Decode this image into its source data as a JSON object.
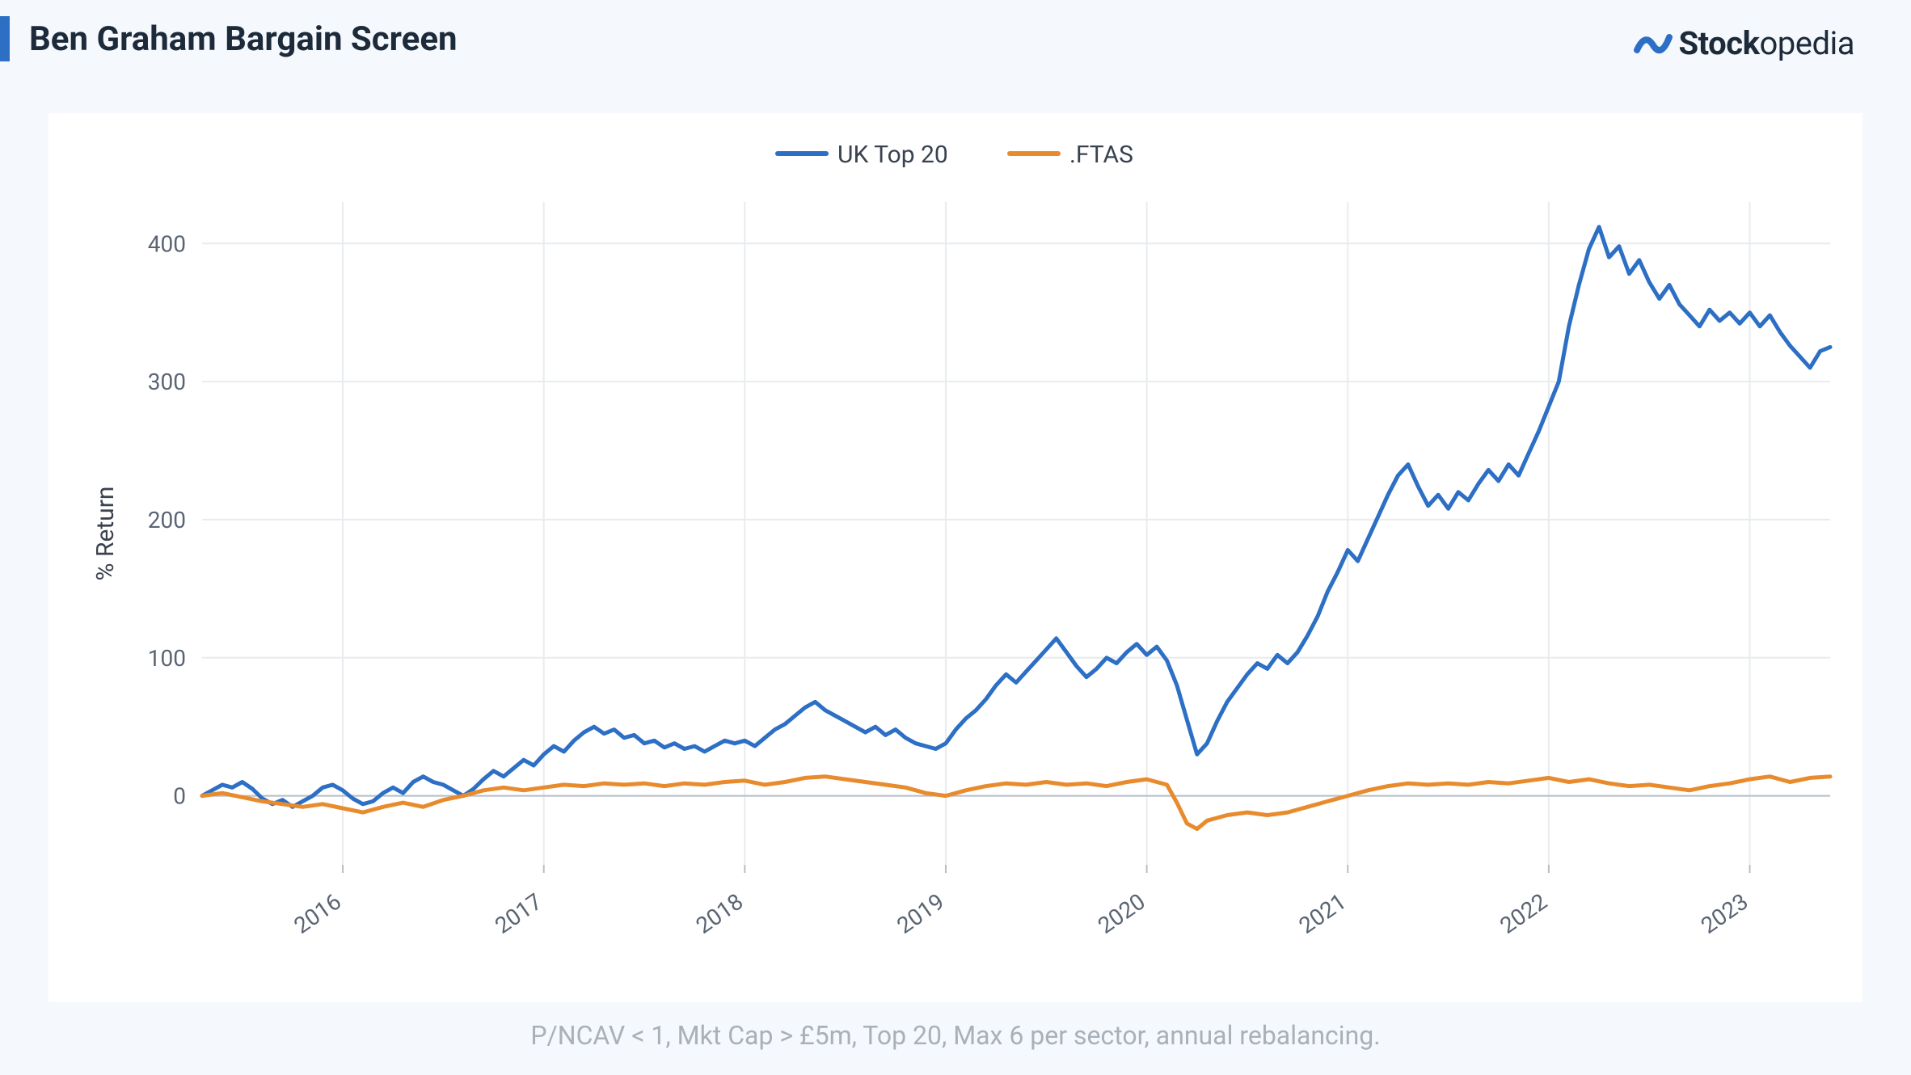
{
  "title": "Ben Graham Bargain Screen",
  "brand": {
    "bold": "Stock",
    "rest": "opedia"
  },
  "caption": "P/NCAV < 1, Mkt Cap > £5m, Top 20, Max 6 per sector, annual rebalancing.",
  "chart": {
    "type": "line",
    "background_color": "#ffffff",
    "page_background_color": "#f5f8fc",
    "grid_color": "#e8ecef",
    "axis_color": "#b8bec6",
    "tick_label_color": "#5a6472",
    "tick_label_fontsize": 28,
    "title_fontsize": 42,
    "title_color": "#1c2a3a",
    "caption_fontsize": 32,
    "caption_color": "#a9b0b8",
    "ylabel": "% Return",
    "ylabel_fontsize": 30,
    "ylim": [
      -50,
      430
    ],
    "yticks": [
      0,
      100,
      200,
      300,
      400
    ],
    "xlim": [
      2015.3,
      2023.4
    ],
    "xticks": [
      2016,
      2017,
      2018,
      2019,
      2020,
      2021,
      2022,
      2023
    ],
    "xtick_labels": [
      "2016",
      "2017",
      "2018",
      "2019",
      "2020",
      "2021",
      "2022",
      "2023"
    ],
    "legend": [
      {
        "label": "UK Top 20",
        "color": "#2d6fc4"
      },
      {
        "label": ".FTAS",
        "color": "#e88b2d"
      }
    ],
    "legend_fontsize": 30,
    "line_width": 5,
    "series": [
      {
        "name": "UK Top 20",
        "color": "#2d6fc4",
        "points": [
          [
            2015.3,
            0
          ],
          [
            2015.35,
            4
          ],
          [
            2015.4,
            8
          ],
          [
            2015.45,
            6
          ],
          [
            2015.5,
            10
          ],
          [
            2015.55,
            5
          ],
          [
            2015.6,
            -2
          ],
          [
            2015.65,
            -6
          ],
          [
            2015.7,
            -3
          ],
          [
            2015.75,
            -8
          ],
          [
            2015.8,
            -4
          ],
          [
            2015.85,
            0
          ],
          [
            2015.9,
            6
          ],
          [
            2015.95,
            8
          ],
          [
            2016.0,
            4
          ],
          [
            2016.05,
            -2
          ],
          [
            2016.1,
            -6
          ],
          [
            2016.15,
            -4
          ],
          [
            2016.2,
            2
          ],
          [
            2016.25,
            6
          ],
          [
            2016.3,
            2
          ],
          [
            2016.35,
            10
          ],
          [
            2016.4,
            14
          ],
          [
            2016.45,
            10
          ],
          [
            2016.5,
            8
          ],
          [
            2016.55,
            4
          ],
          [
            2016.6,
            0
          ],
          [
            2016.65,
            5
          ],
          [
            2016.7,
            12
          ],
          [
            2016.75,
            18
          ],
          [
            2016.8,
            14
          ],
          [
            2016.85,
            20
          ],
          [
            2016.9,
            26
          ],
          [
            2016.95,
            22
          ],
          [
            2017.0,
            30
          ],
          [
            2017.05,
            36
          ],
          [
            2017.1,
            32
          ],
          [
            2017.15,
            40
          ],
          [
            2017.2,
            46
          ],
          [
            2017.25,
            50
          ],
          [
            2017.3,
            45
          ],
          [
            2017.35,
            48
          ],
          [
            2017.4,
            42
          ],
          [
            2017.45,
            44
          ],
          [
            2017.5,
            38
          ],
          [
            2017.55,
            40
          ],
          [
            2017.6,
            35
          ],
          [
            2017.65,
            38
          ],
          [
            2017.7,
            34
          ],
          [
            2017.75,
            36
          ],
          [
            2017.8,
            32
          ],
          [
            2017.85,
            36
          ],
          [
            2017.9,
            40
          ],
          [
            2017.95,
            38
          ],
          [
            2018.0,
            40
          ],
          [
            2018.05,
            36
          ],
          [
            2018.1,
            42
          ],
          [
            2018.15,
            48
          ],
          [
            2018.2,
            52
          ],
          [
            2018.25,
            58
          ],
          [
            2018.3,
            64
          ],
          [
            2018.35,
            68
          ],
          [
            2018.4,
            62
          ],
          [
            2018.45,
            58
          ],
          [
            2018.5,
            54
          ],
          [
            2018.55,
            50
          ],
          [
            2018.6,
            46
          ],
          [
            2018.65,
            50
          ],
          [
            2018.7,
            44
          ],
          [
            2018.75,
            48
          ],
          [
            2018.8,
            42
          ],
          [
            2018.85,
            38
          ],
          [
            2018.9,
            36
          ],
          [
            2018.95,
            34
          ],
          [
            2019.0,
            38
          ],
          [
            2019.05,
            48
          ],
          [
            2019.1,
            56
          ],
          [
            2019.15,
            62
          ],
          [
            2019.2,
            70
          ],
          [
            2019.25,
            80
          ],
          [
            2019.3,
            88
          ],
          [
            2019.35,
            82
          ],
          [
            2019.4,
            90
          ],
          [
            2019.45,
            98
          ],
          [
            2019.5,
            106
          ],
          [
            2019.55,
            114
          ],
          [
            2019.6,
            104
          ],
          [
            2019.65,
            94
          ],
          [
            2019.7,
            86
          ],
          [
            2019.75,
            92
          ],
          [
            2019.8,
            100
          ],
          [
            2019.85,
            96
          ],
          [
            2019.9,
            104
          ],
          [
            2019.95,
            110
          ],
          [
            2020.0,
            102
          ],
          [
            2020.05,
            108
          ],
          [
            2020.1,
            98
          ],
          [
            2020.15,
            80
          ],
          [
            2020.2,
            55
          ],
          [
            2020.25,
            30
          ],
          [
            2020.3,
            38
          ],
          [
            2020.35,
            54
          ],
          [
            2020.4,
            68
          ],
          [
            2020.45,
            78
          ],
          [
            2020.5,
            88
          ],
          [
            2020.55,
            96
          ],
          [
            2020.6,
            92
          ],
          [
            2020.65,
            102
          ],
          [
            2020.7,
            96
          ],
          [
            2020.75,
            104
          ],
          [
            2020.8,
            116
          ],
          [
            2020.85,
            130
          ],
          [
            2020.9,
            148
          ],
          [
            2020.95,
            162
          ],
          [
            2021.0,
            178
          ],
          [
            2021.05,
            170
          ],
          [
            2021.1,
            186
          ],
          [
            2021.15,
            202
          ],
          [
            2021.2,
            218
          ],
          [
            2021.25,
            232
          ],
          [
            2021.3,
            240
          ],
          [
            2021.35,
            224
          ],
          [
            2021.4,
            210
          ],
          [
            2021.45,
            218
          ],
          [
            2021.5,
            208
          ],
          [
            2021.55,
            220
          ],
          [
            2021.6,
            214
          ],
          [
            2021.65,
            226
          ],
          [
            2021.7,
            236
          ],
          [
            2021.75,
            228
          ],
          [
            2021.8,
            240
          ],
          [
            2021.85,
            232
          ],
          [
            2021.9,
            248
          ],
          [
            2021.95,
            264
          ],
          [
            2022.0,
            282
          ],
          [
            2022.05,
            300
          ],
          [
            2022.1,
            340
          ],
          [
            2022.15,
            370
          ],
          [
            2022.2,
            396
          ],
          [
            2022.25,
            412
          ],
          [
            2022.3,
            390
          ],
          [
            2022.35,
            398
          ],
          [
            2022.4,
            378
          ],
          [
            2022.45,
            388
          ],
          [
            2022.5,
            372
          ],
          [
            2022.55,
            360
          ],
          [
            2022.6,
            370
          ],
          [
            2022.65,
            356
          ],
          [
            2022.7,
            348
          ],
          [
            2022.75,
            340
          ],
          [
            2022.8,
            352
          ],
          [
            2022.85,
            344
          ],
          [
            2022.9,
            350
          ],
          [
            2022.95,
            342
          ],
          [
            2023.0,
            350
          ],
          [
            2023.05,
            340
          ],
          [
            2023.1,
            348
          ],
          [
            2023.15,
            336
          ],
          [
            2023.2,
            326
          ],
          [
            2023.25,
            318
          ],
          [
            2023.3,
            310
          ],
          [
            2023.35,
            322
          ],
          [
            2023.4,
            325
          ]
        ]
      },
      {
        "name": ".FTAS",
        "color": "#e88b2d",
        "points": [
          [
            2015.3,
            0
          ],
          [
            2015.4,
            2
          ],
          [
            2015.5,
            -1
          ],
          [
            2015.6,
            -4
          ],
          [
            2015.7,
            -6
          ],
          [
            2015.8,
            -8
          ],
          [
            2015.9,
            -6
          ],
          [
            2016.0,
            -9
          ],
          [
            2016.1,
            -12
          ],
          [
            2016.2,
            -8
          ],
          [
            2016.3,
            -5
          ],
          [
            2016.4,
            -8
          ],
          [
            2016.5,
            -3
          ],
          [
            2016.6,
            0
          ],
          [
            2016.7,
            4
          ],
          [
            2016.8,
            6
          ],
          [
            2016.9,
            4
          ],
          [
            2017.0,
            6
          ],
          [
            2017.1,
            8
          ],
          [
            2017.2,
            7
          ],
          [
            2017.3,
            9
          ],
          [
            2017.4,
            8
          ],
          [
            2017.5,
            9
          ],
          [
            2017.6,
            7
          ],
          [
            2017.7,
            9
          ],
          [
            2017.8,
            8
          ],
          [
            2017.9,
            10
          ],
          [
            2018.0,
            11
          ],
          [
            2018.1,
            8
          ],
          [
            2018.2,
            10
          ],
          [
            2018.3,
            13
          ],
          [
            2018.4,
            14
          ],
          [
            2018.5,
            12
          ],
          [
            2018.6,
            10
          ],
          [
            2018.7,
            8
          ],
          [
            2018.8,
            6
          ],
          [
            2018.9,
            2
          ],
          [
            2019.0,
            0
          ],
          [
            2019.1,
            4
          ],
          [
            2019.2,
            7
          ],
          [
            2019.3,
            9
          ],
          [
            2019.4,
            8
          ],
          [
            2019.5,
            10
          ],
          [
            2019.6,
            8
          ],
          [
            2019.7,
            9
          ],
          [
            2019.8,
            7
          ],
          [
            2019.9,
            10
          ],
          [
            2020.0,
            12
          ],
          [
            2020.1,
            8
          ],
          [
            2020.15,
            -5
          ],
          [
            2020.2,
            -20
          ],
          [
            2020.25,
            -24
          ],
          [
            2020.3,
            -18
          ],
          [
            2020.4,
            -14
          ],
          [
            2020.5,
            -12
          ],
          [
            2020.6,
            -14
          ],
          [
            2020.7,
            -12
          ],
          [
            2020.8,
            -8
          ],
          [
            2020.9,
            -4
          ],
          [
            2021.0,
            0
          ],
          [
            2021.1,
            4
          ],
          [
            2021.2,
            7
          ],
          [
            2021.3,
            9
          ],
          [
            2021.4,
            8
          ],
          [
            2021.5,
            9
          ],
          [
            2021.6,
            8
          ],
          [
            2021.7,
            10
          ],
          [
            2021.8,
            9
          ],
          [
            2021.9,
            11
          ],
          [
            2022.0,
            13
          ],
          [
            2022.1,
            10
          ],
          [
            2022.2,
            12
          ],
          [
            2022.3,
            9
          ],
          [
            2022.4,
            7
          ],
          [
            2022.5,
            8
          ],
          [
            2022.6,
            6
          ],
          [
            2022.7,
            4
          ],
          [
            2022.8,
            7
          ],
          [
            2022.9,
            9
          ],
          [
            2023.0,
            12
          ],
          [
            2023.1,
            14
          ],
          [
            2023.2,
            10
          ],
          [
            2023.3,
            13
          ],
          [
            2023.4,
            14
          ]
        ]
      }
    ]
  }
}
